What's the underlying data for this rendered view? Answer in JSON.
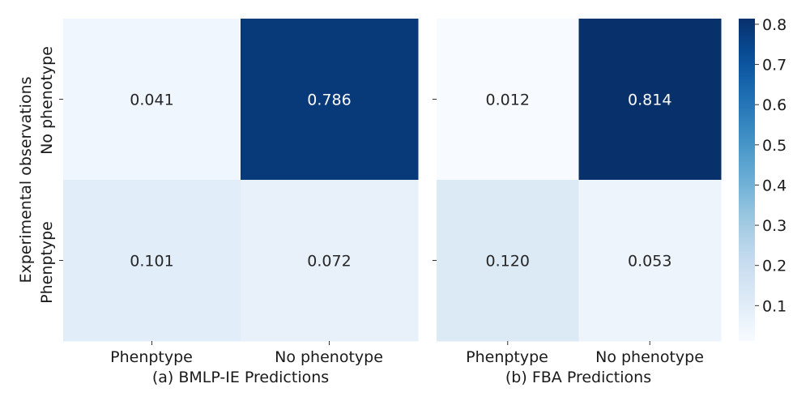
{
  "chart_data": {
    "type": "heatmap",
    "ylabel": "Experimental observations",
    "row_labels": [
      "No phenotype",
      "Phenptype"
    ],
    "col_labels": [
      "Phenptype",
      "No phenotype"
    ],
    "panels": [
      {
        "xlabel": "(a) BMLP-IE Predictions",
        "values": [
          [
            0.041,
            0.786
          ],
          [
            0.101,
            0.072
          ]
        ],
        "cell_labels": [
          [
            "0.041",
            "0.786"
          ],
          [
            "0.101",
            "0.072"
          ]
        ]
      },
      {
        "xlabel": "(b) FBA Predictions",
        "values": [
          [
            0.012,
            0.814
          ],
          [
            0.12,
            0.053
          ]
        ],
        "cell_labels": [
          [
            "0.012",
            "0.814"
          ],
          [
            "0.120",
            "0.053"
          ]
        ]
      }
    ],
    "colorbar": {
      "colormap": "Blues",
      "vmin": 0.012,
      "vmax": 0.814,
      "ticks": [
        0.1,
        0.2,
        0.3,
        0.4,
        0.5,
        0.6,
        0.7,
        0.8
      ],
      "tick_labels": [
        "0.1",
        "0.2",
        "0.3",
        "0.4",
        "0.5",
        "0.6",
        "0.7",
        "0.8"
      ]
    }
  }
}
